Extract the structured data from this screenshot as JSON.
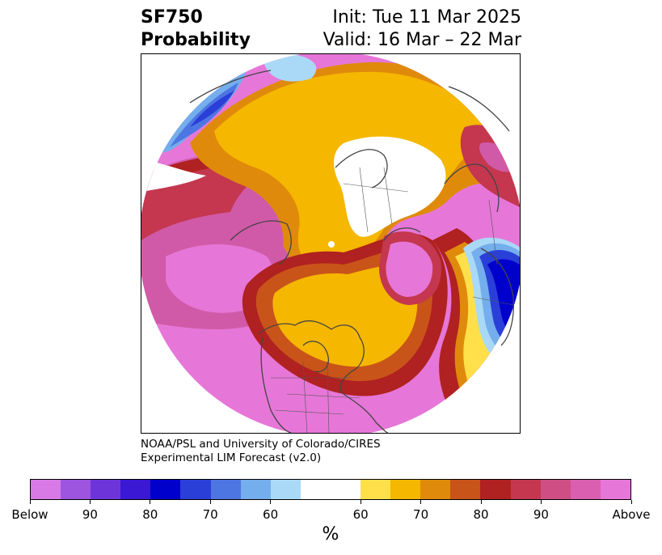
{
  "title": {
    "left_line1": "SF750",
    "left_line2": "Probability",
    "right_line1": "Init: Tue 11 Mar 2025",
    "right_line2": "Valid: 16 Mar – 22 Mar"
  },
  "credit": {
    "line1": "NOAA/PSL and University of Colorado/CIRES",
    "line2": "Experimental LIM Forecast (v2.0)"
  },
  "colorbar": {
    "colors": [
      "#d77ae6",
      "#9d55e0",
      "#6d35d9",
      "#3a18d4",
      "#0000cc",
      "#2a3fd8",
      "#4e76e3",
      "#74aeec",
      "#aad9f7",
      "#ffffff",
      "#ffe04a",
      "#f5b700",
      "#e08a0c",
      "#c9541a",
      "#b02121",
      "#c4374f",
      "#cf4f85",
      "#da5fb0",
      "#e677d8"
    ],
    "tick_labels": [
      "Below",
      "90",
      "80",
      "70",
      "60",
      "60",
      "70",
      "80",
      "90",
      "Above"
    ],
    "unit": "%"
  },
  "map": {
    "projection": "north-polar-stereographic",
    "palette": {
      "pink": "#e677d8",
      "magenta": "#d15aa8",
      "rose": "#c4374f",
      "red": "#b02121",
      "rust": "#c9541a",
      "orange": "#e08a0c",
      "gold": "#f5b700",
      "yellow": "#ffe04a",
      "lightblue": "#aad9f7",
      "skyblue": "#74aeec",
      "blue": "#4e76e3",
      "royal": "#2a3fd8",
      "deepblue": "#0000cc"
    }
  }
}
